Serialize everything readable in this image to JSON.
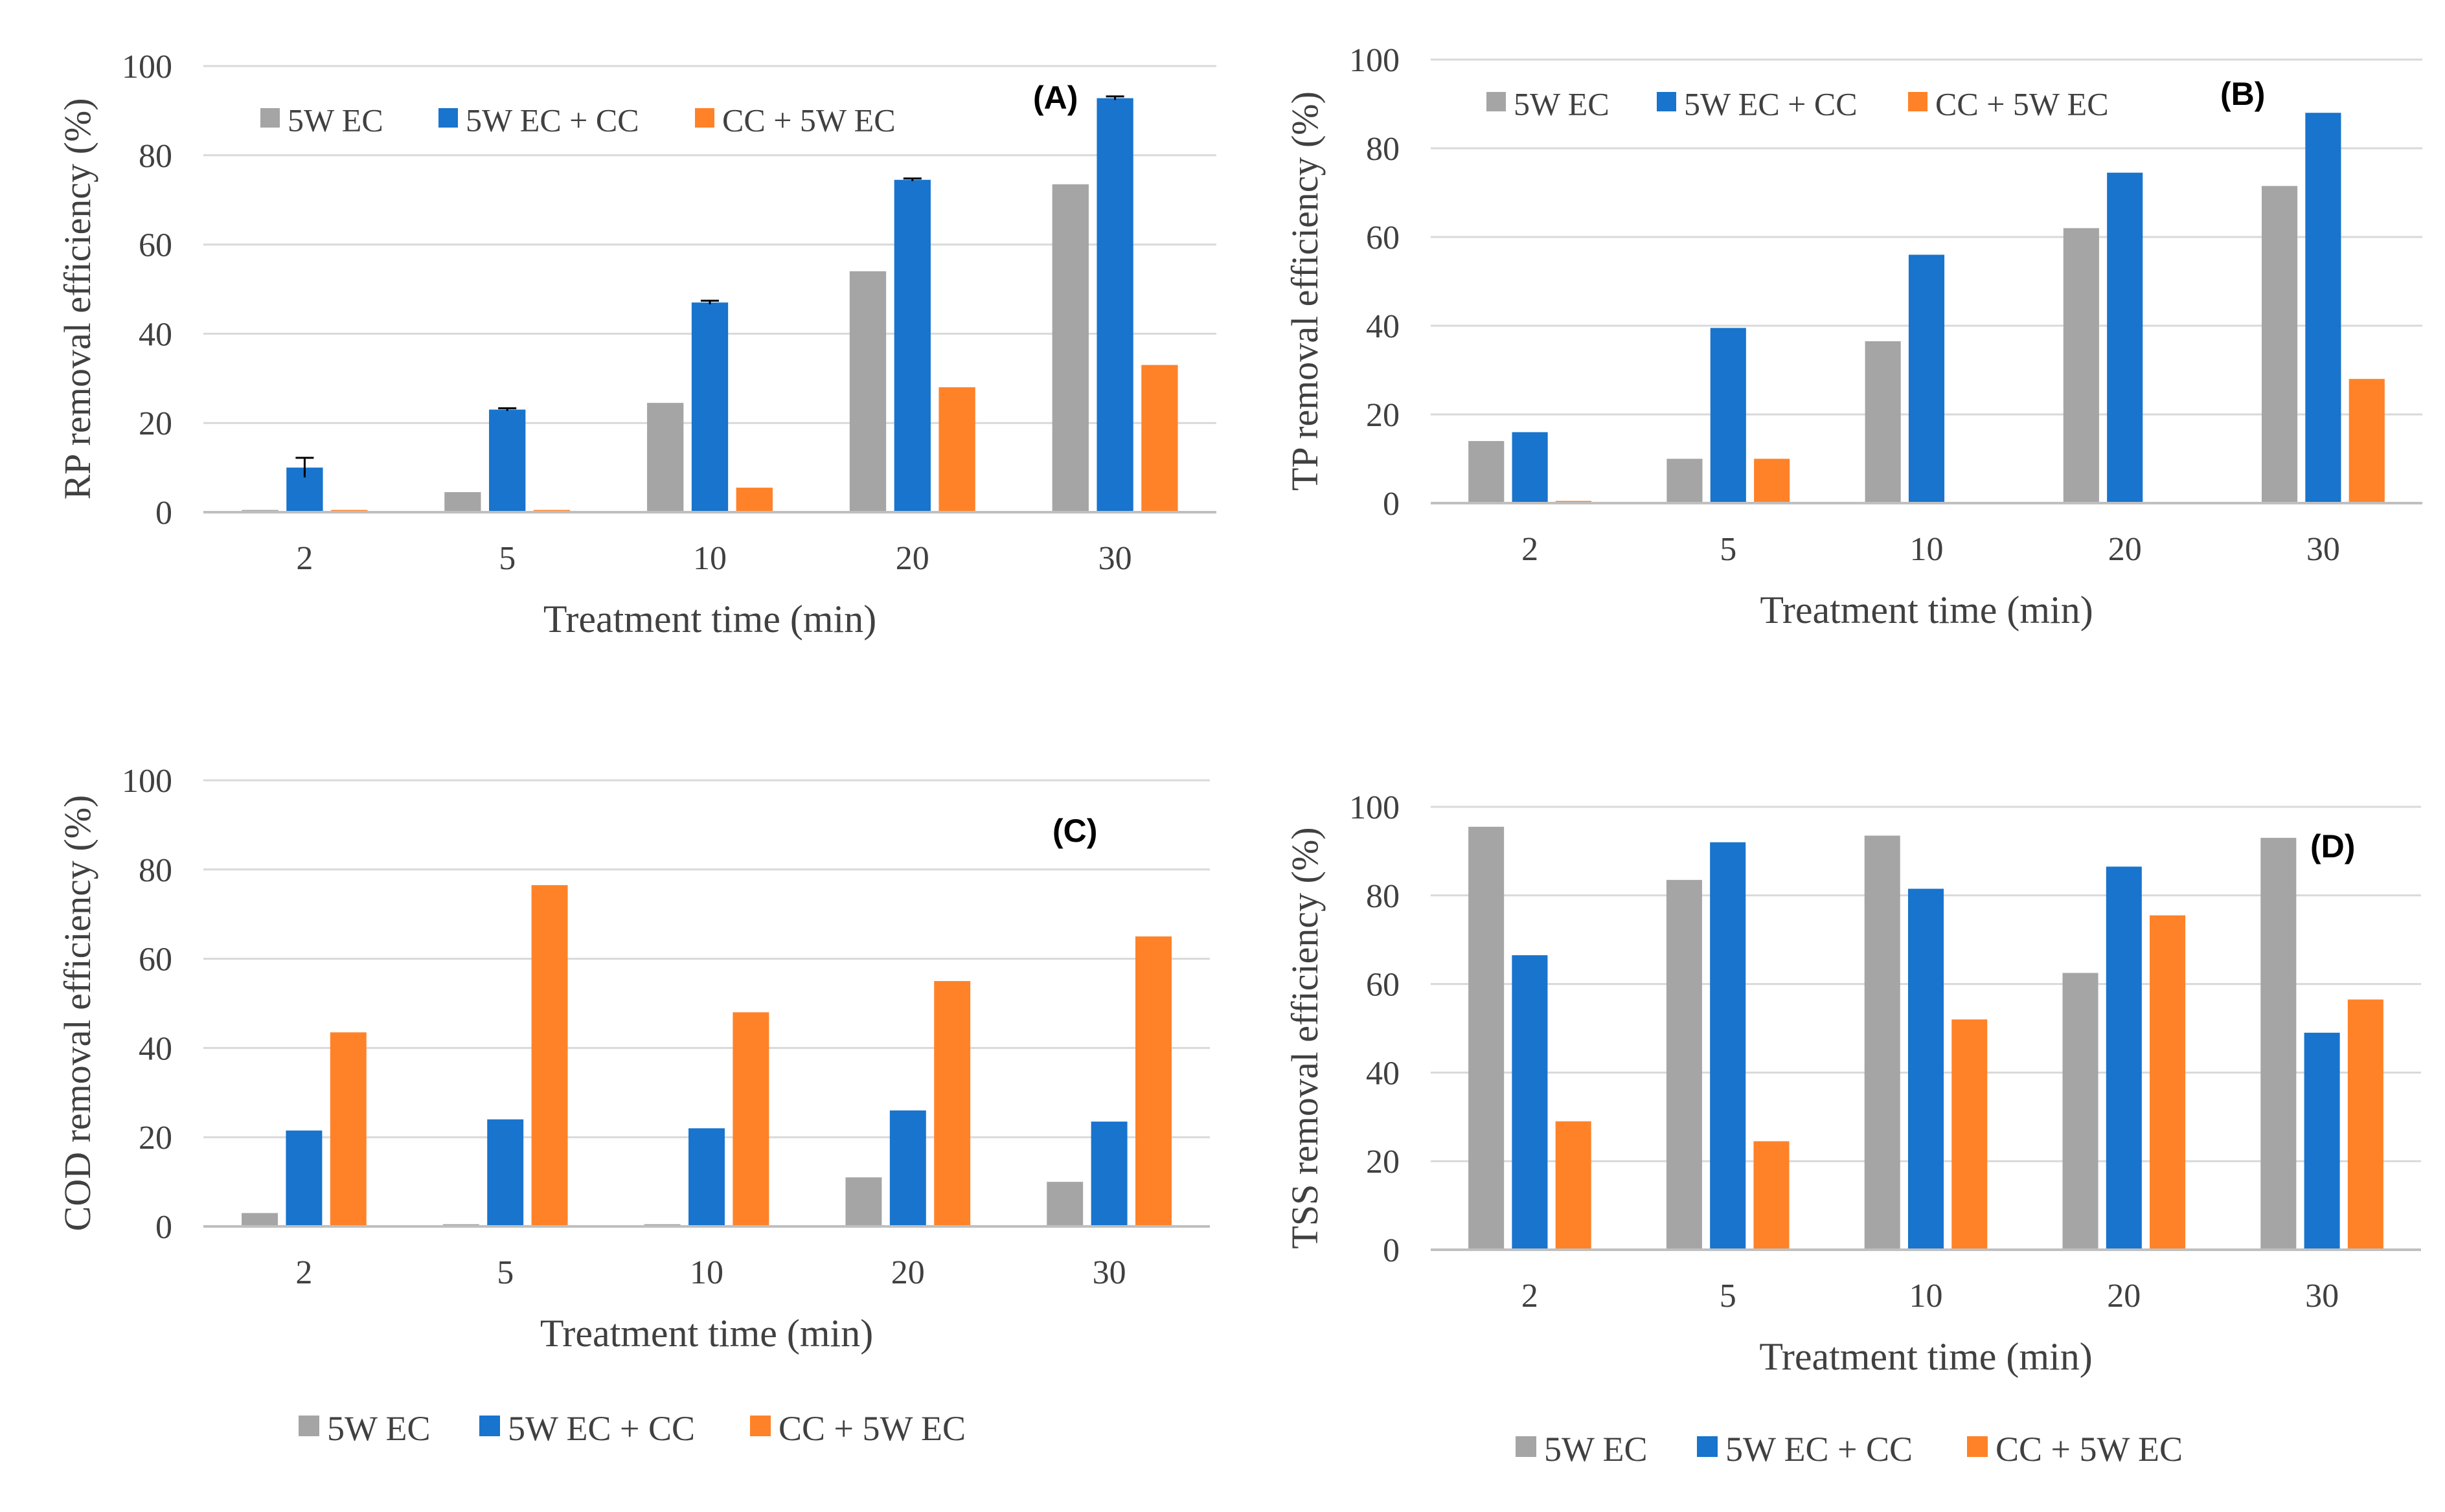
{
  "colors": {
    "series": [
      "#A5A5A5",
      "#1874CD",
      "#FF8228"
    ],
    "grid": "#D9D9D9",
    "axis": "#BFBFBF",
    "text": "#404040",
    "panel_label": "#000000",
    "error_bar": "#000000"
  },
  "chart_data": [
    {
      "type": "bar",
      "panel": "(A)",
      "categories": [
        "2",
        "5",
        "10",
        "20",
        "30"
      ],
      "series": [
        {
          "name": "5W EC",
          "values": [
            0.5,
            4.5,
            24.5,
            54,
            73.5
          ]
        },
        {
          "name": "5W EC + CC",
          "values": [
            10,
            23,
            47,
            74.5,
            92.8
          ],
          "errors": [
            2.2,
            0.3,
            0.4,
            0.3,
            0.4
          ]
        },
        {
          "name": "CC + 5W EC",
          "values": [
            0.5,
            0.5,
            5.5,
            28,
            33
          ]
        }
      ],
      "ylabel": "RP removal efficiency (%)",
      "xlabel": "Treatment time (min)",
      "ylim": [
        0,
        100
      ],
      "yticks": [
        "0",
        "20",
        "40",
        "60",
        "80",
        "100"
      ],
      "legend": "top-left-inside",
      "grid": true
    },
    {
      "type": "bar",
      "panel": "(B)",
      "categories": [
        "2",
        "5",
        "10",
        "20",
        "30"
      ],
      "series": [
        {
          "name": "5W EC",
          "values": [
            14,
            10,
            36.5,
            62,
            71.5
          ]
        },
        {
          "name": "5W EC + CC",
          "values": [
            16,
            39.5,
            56,
            74.5,
            88
          ]
        },
        {
          "name": "CC + 5W EC",
          "values": [
            0.5,
            10,
            0,
            0,
            28
          ]
        }
      ],
      "ylabel": "TP removal efficiency (%)",
      "xlabel": "Treatment time (min)",
      "ylim": [
        0,
        100
      ],
      "yticks": [
        "0",
        "20",
        "40",
        "60",
        "80",
        "100"
      ],
      "legend": "top-left-inside",
      "grid": true
    },
    {
      "type": "bar",
      "panel": "(C)",
      "categories": [
        "2",
        "5",
        "10",
        "20",
        "30"
      ],
      "series": [
        {
          "name": "5W EC",
          "values": [
            3,
            0.5,
            0.5,
            11,
            10
          ]
        },
        {
          "name": "5W EC + CC",
          "values": [
            21.5,
            24,
            22,
            26,
            23.5
          ]
        },
        {
          "name": "CC + 5W EC",
          "values": [
            43.5,
            76.5,
            48,
            55,
            65
          ]
        }
      ],
      "ylabel": "COD removal efficiency (%)",
      "xlabel": "Treatment time (min)",
      "ylim": [
        0,
        100
      ],
      "yticks": [
        "0",
        "20",
        "40",
        "60",
        "80",
        "100"
      ],
      "legend": "bottom",
      "grid": true
    },
    {
      "type": "bar",
      "panel": "(D)",
      "categories": [
        "2",
        "5",
        "10",
        "20",
        "30"
      ],
      "series": [
        {
          "name": "5W EC",
          "values": [
            95.5,
            83.5,
            93.5,
            62.5,
            93
          ]
        },
        {
          "name": "5W EC + CC",
          "values": [
            66.5,
            92,
            81.5,
            86.5,
            49
          ]
        },
        {
          "name": "CC + 5W EC",
          "values": [
            29,
            24.5,
            52,
            75.5,
            56.5
          ]
        }
      ],
      "ylabel": "TSS removal efficiency (%)",
      "xlabel": "Treatment time (min)",
      "ylim": [
        0,
        100
      ],
      "yticks": [
        "0",
        "20",
        "40",
        "60",
        "80",
        "100"
      ],
      "legend": "bottom",
      "grid": true
    }
  ]
}
